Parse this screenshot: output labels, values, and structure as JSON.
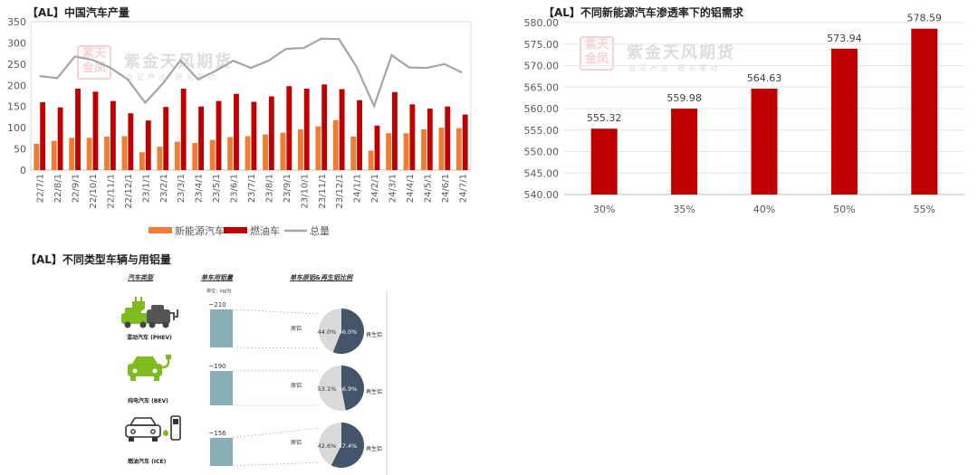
{
  "watermark": {
    "stamp": "紫天金凤",
    "name": "紫金天风期货",
    "slogan": "立足产业 研究驱动"
  },
  "colors": {
    "nev": "#ed7d31",
    "fuel": "#c00000",
    "total": "#a5a5a5",
    "bar2": "#c00000",
    "pie_dark": "#44546a",
    "pie_light": "#d9d9d9",
    "bar3": "#8aaeb8",
    "icon_green": "#7dbb21"
  },
  "chart_data": [
    {
      "type": "bar",
      "title": "【AL】中国汽车产量",
      "categories": [
        "22/7/1",
        "22/8/1",
        "22/9/1",
        "22/10/1",
        "22/11/1",
        "22/12/1",
        "23/1/1",
        "23/2/1",
        "23/3/1",
        "23/4/1",
        "23/5/1",
        "23/6/1",
        "23/7/1",
        "23/8/1",
        "23/9/1",
        "23/10/1",
        "23/11/1",
        "23/12/1",
        "24/1/1",
        "24/2/1",
        "24/3/1",
        "24/4/1",
        "24/5/1",
        "24/6/1",
        "24/7/1"
      ],
      "series": [
        {
          "name": "新能源汽车",
          "type": "bar",
          "values": [
            62,
            69,
            76,
            76,
            79,
            80,
            42,
            55,
            67,
            64,
            71,
            78,
            80,
            84,
            88,
            96,
            103,
            118,
            79,
            46,
            87,
            87,
            96,
            100,
            99
          ]
        },
        {
          "name": "燃油车",
          "type": "bar",
          "values": [
            160,
            148,
            192,
            185,
            163,
            134,
            117,
            149,
            192,
            150,
            163,
            180,
            161,
            174,
            198,
            192,
            202,
            191,
            165,
            105,
            184,
            155,
            145,
            150,
            131
          ]
        },
        {
          "name": "总量",
          "type": "line",
          "values": [
            222,
            217,
            268,
            260,
            242,
            214,
            159,
            204,
            259,
            214,
            234,
            258,
            241,
            258,
            286,
            288,
            310,
            309,
            244,
            151,
            271,
            242,
            241,
            250,
            230
          ]
        }
      ],
      "ylim": [
        0,
        350
      ],
      "yticks": [
        0,
        50,
        100,
        150,
        200,
        250,
        300,
        350
      ],
      "legend_position": "bottom"
    },
    {
      "type": "bar",
      "title": "【AL】不同新能源汽车渗透率下的铝需求",
      "categories": [
        "30%",
        "35%",
        "40%",
        "50%",
        "55%"
      ],
      "values": [
        555.32,
        559.98,
        564.63,
        573.94,
        578.59
      ],
      "value_labels": [
        "555.32",
        "559.98",
        "564.63",
        "573.94",
        "578.59"
      ],
      "ylim": [
        540,
        580
      ],
      "yticks": [
        "540.00",
        "545.00",
        "550.00",
        "555.00",
        "560.00",
        "565.00",
        "570.00",
        "575.00",
        "580.00"
      ],
      "grid": true
    },
    {
      "type": "table",
      "title": "【AL】不同类型车辆与用铝量",
      "headers": {
        "type": "汽车类型",
        "usage": "单车用铝量",
        "ratio": "单车原铝&再生铝比例"
      },
      "unit": "单位：kg/台",
      "rows": [
        {
          "vehicle": "混动汽车 (PHEV)",
          "usage_label": "~210",
          "usage": 210,
          "primary_label": "原铝",
          "secondary_label": "再生铝",
          "primary_pct_label": "44.0%",
          "secondary_pct_label": "56.0%",
          "primary_pct": 44.0,
          "secondary_pct": 56.0
        },
        {
          "vehicle": "纯电汽车 (BEV)",
          "usage_label": "~190",
          "usage": 190,
          "primary_label": "原铝",
          "secondary_label": "再生铝",
          "primary_pct_label": "53.1%",
          "secondary_pct_label": "46.9%",
          "primary_pct": 53.1,
          "secondary_pct": 46.9
        },
        {
          "vehicle": "燃油汽车 (ICE)",
          "usage_label": "~156",
          "usage": 156,
          "primary_label": "原铝",
          "secondary_label": "再生铝",
          "primary_pct_label": "42.6%",
          "secondary_pct_label": "57.4%",
          "primary_pct": 42.6,
          "secondary_pct": 57.4
        }
      ]
    }
  ],
  "icons": [
    "phev-car-icon",
    "bev-car-icon",
    "ice-car-icon"
  ]
}
